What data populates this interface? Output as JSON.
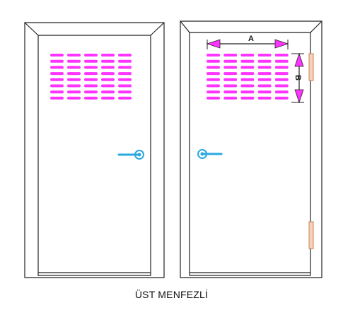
{
  "caption": "ÜST MENFEZLİ",
  "dimensions": {
    "width_label": "A",
    "height_label": "B"
  },
  "vent_grille": {
    "columns": 5,
    "rows": 8
  },
  "colors": {
    "outline": "#222222",
    "vent": "#ff33ff",
    "dimension_arrow": "#ff33ff",
    "handle": "#2aa8e0",
    "hinge": "#f2b48a"
  }
}
